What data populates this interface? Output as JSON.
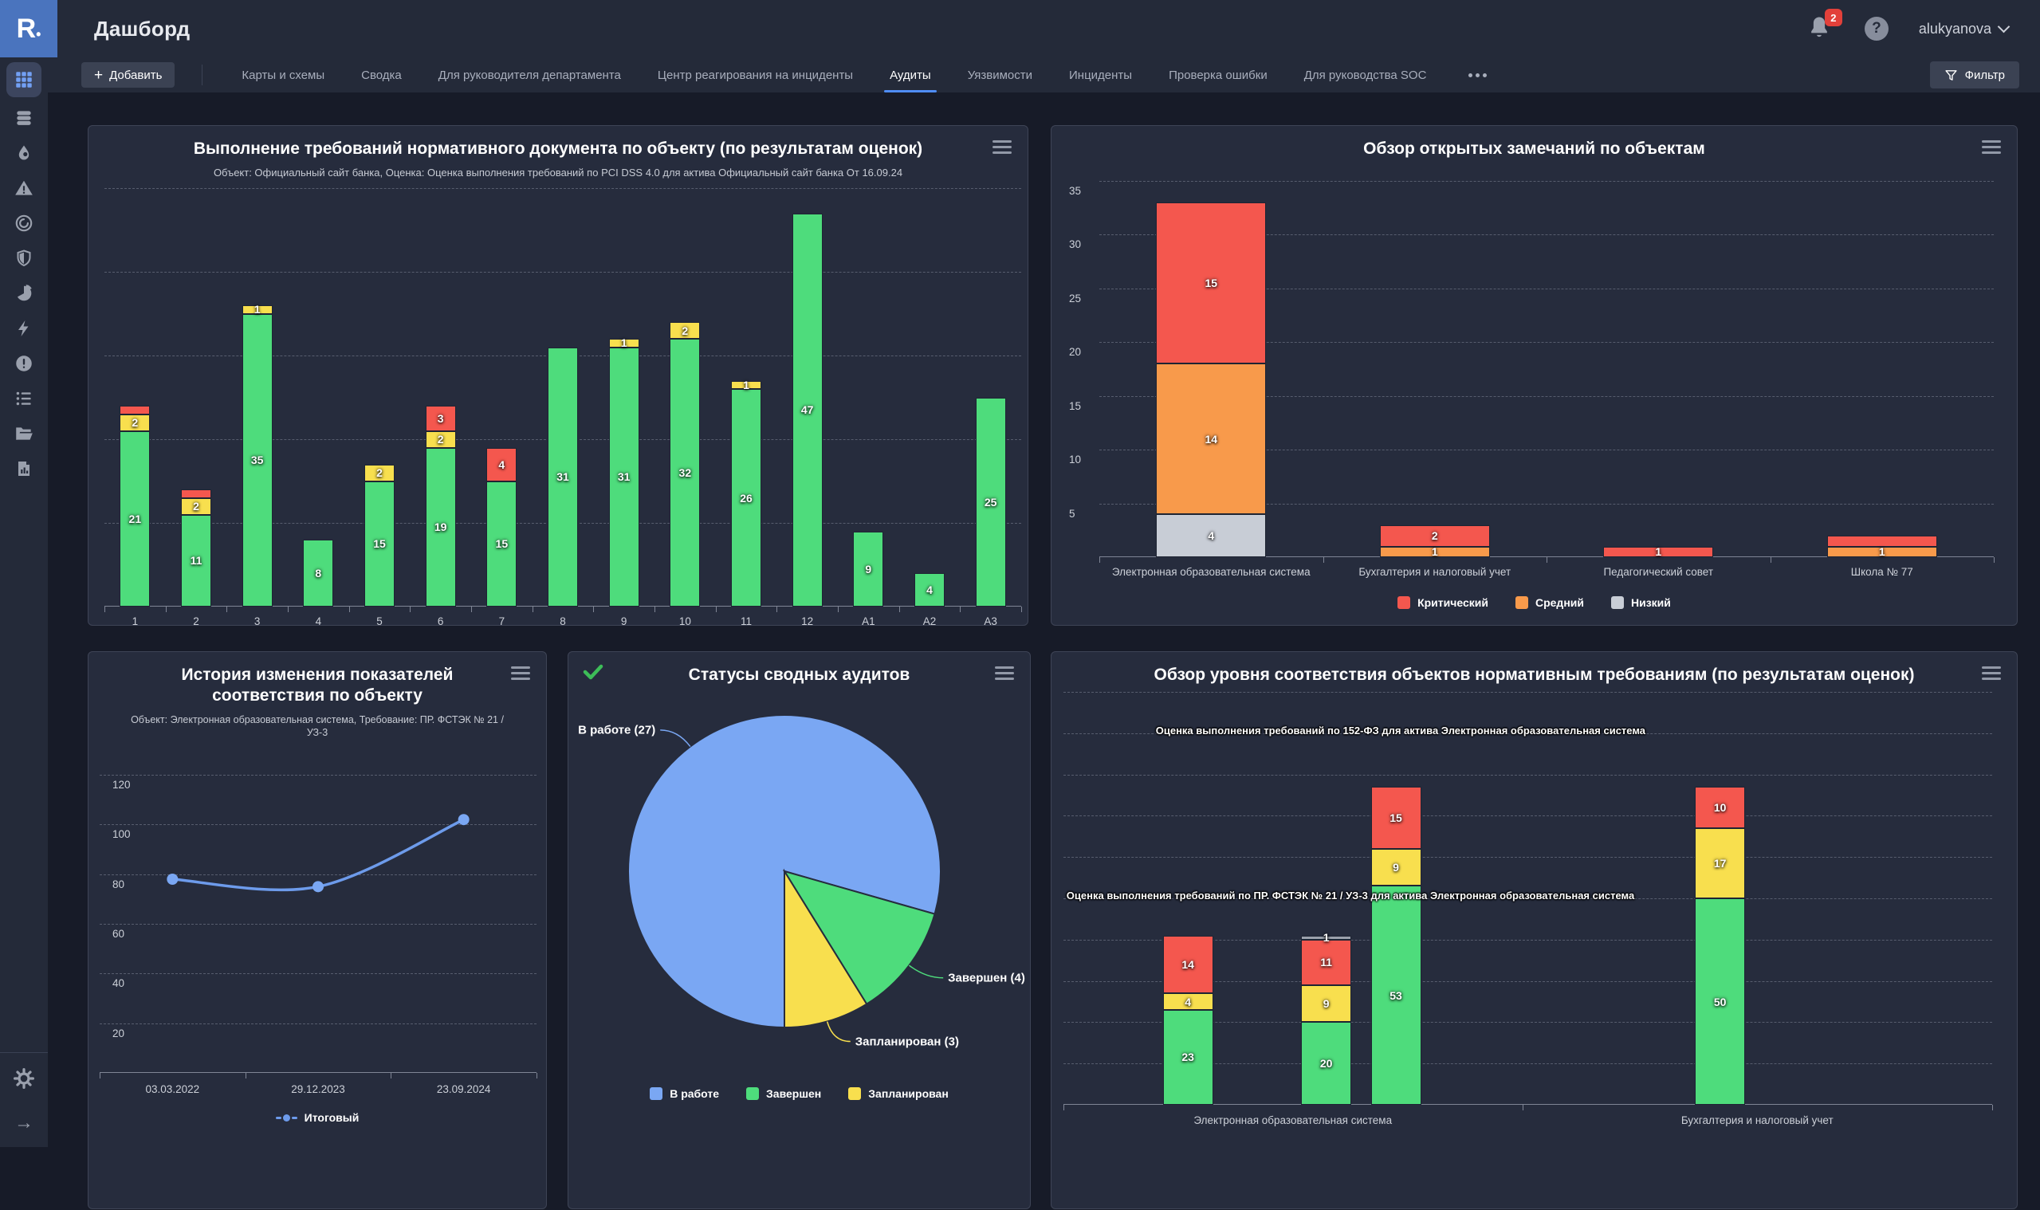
{
  "topbar": {
    "title": "Дашборд",
    "logo": "R",
    "notifications_badge": "2",
    "user": "alukyanova"
  },
  "sidebar": {
    "icons": [
      "dashboard-grid",
      "database",
      "droplet",
      "warning-triangle",
      "process-circle",
      "shield",
      "pie-chart",
      "lightning",
      "alert-circle",
      "task-list",
      "folder",
      "report-document",
      "settings-gear",
      "expand-arrow"
    ],
    "active": "dashboard-grid"
  },
  "tabbar": {
    "add_label": "Добавить",
    "tabs": [
      "Карты и схемы",
      "Сводка",
      "Для руководителя департамента",
      "Центр реагирования на инциденты",
      "Аудиты",
      "Уязвимости",
      "Инциденты",
      "Проверка ошибки",
      "Для руководства SOC"
    ],
    "active_tab": "Аудиты",
    "filter_label": "Фильтр"
  },
  "palette": {
    "green": "#4edc7c",
    "yellow": "#f8df4e",
    "red": "#f4574e",
    "orange": "#f89a4b",
    "gray": "#c8cdd6",
    "gray2": "#9aa0ab",
    "blue": "#7aa7f3",
    "line": "#6d9beb",
    "accent": "#4f8df6"
  },
  "chart_data": [
    {
      "id": "c1",
      "type": "bar",
      "stacked": true,
      "title": "Выполнение требований нормативного документа по объекту (по результатам оценок)",
      "subtitle": "Объект: Официальный сайт банка, Оценка: Оценка выполнения требований по PCI DSS 4.0 для актива Официальный сайт банка От 16.09.24",
      "categories": [
        "1",
        "2",
        "3",
        "4",
        "5",
        "6",
        "7",
        "8",
        "9",
        "10",
        "11",
        "12",
        "А1",
        "А2",
        "А3"
      ],
      "series": [
        {
          "name": "green",
          "color": "green",
          "values": [
            21,
            11,
            35,
            8,
            15,
            19,
            15,
            31,
            31,
            32,
            26,
            47,
            9,
            4,
            25
          ],
          "labels": [
            "21",
            "11",
            "35",
            "8",
            "15",
            "19",
            "15",
            "31",
            "31",
            "32",
            "26",
            "47",
            "9",
            "4",
            "25"
          ]
        },
        {
          "name": "yellow",
          "color": "yellow",
          "values": [
            2,
            2,
            1,
            0,
            2,
            2,
            0,
            0,
            1,
            2,
            1,
            0,
            0,
            0,
            0
          ],
          "labels": [
            "2",
            "2",
            "1",
            null,
            "2",
            "2",
            null,
            null,
            "1",
            "2",
            "1",
            null,
            null,
            null,
            null
          ]
        },
        {
          "name": "red",
          "color": "red",
          "values": [
            1,
            1,
            0,
            0,
            0,
            3,
            4,
            0,
            0,
            0,
            0,
            0,
            0,
            0,
            0
          ],
          "labels": [
            null,
            null,
            null,
            null,
            null,
            "3",
            "4",
            null,
            null,
            null,
            null,
            null,
            null,
            null,
            null
          ]
        }
      ],
      "ylim": [
        0,
        50
      ],
      "grid_step": 10,
      "y_labels": false,
      "grid": true,
      "legend_position": "none"
    },
    {
      "id": "c2",
      "type": "bar",
      "stacked": true,
      "title": "Обзор открытых замечаний по объектам",
      "categories": [
        "Электронная образовательная система",
        "Бухгалтерия и налоговый учет",
        "Педагогический совет",
        "Школа № 77"
      ],
      "series": [
        {
          "name": "Низкий",
          "color": "gray",
          "values": [
            4,
            0,
            0,
            0
          ],
          "labels": [
            "4",
            null,
            null,
            null
          ]
        },
        {
          "name": "Средний",
          "color": "orange",
          "values": [
            14,
            1,
            0,
            1
          ],
          "labels": [
            "14",
            "1",
            null,
            "1"
          ]
        },
        {
          "name": "Критический",
          "color": "red",
          "values": [
            15,
            2,
            1,
            1
          ],
          "labels": [
            "15",
            "2",
            "1",
            null
          ]
        }
      ],
      "legend": [
        {
          "label": "Критический",
          "color": "red"
        },
        {
          "label": "Средний",
          "color": "orange"
        },
        {
          "label": "Низкий",
          "color": "gray"
        }
      ],
      "ylim": [
        0,
        35
      ],
      "grid_step": 5,
      "y_labels": true,
      "grid": true,
      "legend_position": "bottom"
    },
    {
      "id": "c3",
      "type": "line",
      "title": "История изменения показателей соответствия по объекту",
      "subtitle": "Объект: Электронная образовательная система, Требование: ПР. ФСТЭК № 21 / УЗ-3",
      "x": [
        "03.03.2022",
        "29.12.2023",
        "23.09.2024"
      ],
      "series": [
        {
          "name": "Итоговый",
          "color": "line",
          "values": [
            78,
            75,
            102
          ]
        }
      ],
      "ylim": [
        0,
        130
      ],
      "grid_step": 20,
      "y_ticks": [
        20,
        40,
        60,
        80,
        100,
        120
      ],
      "y_labels": true,
      "grid": true,
      "legend_position": "bottom"
    },
    {
      "id": "c4",
      "type": "pie",
      "title": "Статусы сводных аудитов",
      "slices": [
        {
          "label": "В работе",
          "value": 27,
          "color": "blue",
          "callout": "В работе (27)"
        },
        {
          "label": "Завершен",
          "value": 4,
          "color": "green",
          "callout": "Завершен (4)"
        },
        {
          "label": "Запланирован",
          "value": 3,
          "color": "yellow",
          "callout": "Запланирован (3)"
        }
      ],
      "legend": [
        {
          "label": "В работе",
          "color": "blue"
        },
        {
          "label": "Завершен",
          "color": "green"
        },
        {
          "label": "Запланирован",
          "color": "yellow"
        }
      ],
      "legend_position": "bottom"
    },
    {
      "id": "c5",
      "type": "bar-grouped",
      "title": "Обзор уровня соответствия объектов нормативным требованиям (по результатам оценок)",
      "groups": [
        {
          "label": "Электронная образовательная система",
          "bars": [
            {
              "segments": [
                {
                  "value": 23,
                  "color": "green",
                  "label": "23"
                },
                {
                  "value": 4,
                  "color": "yellow",
                  "label": "4"
                },
                {
                  "value": 14,
                  "color": "red",
                  "label": "14"
                }
              ]
            },
            {
              "segments": [
                {
                  "value": 20,
                  "color": "green",
                  "label": "20"
                },
                {
                  "value": 9,
                  "color": "yellow",
                  "label": "9"
                },
                {
                  "value": 11,
                  "color": "red",
                  "label": "11"
                },
                {
                  "value": 1,
                  "color": "gray2",
                  "label": "1"
                }
              ]
            },
            {
              "segments": [
                {
                  "value": 53,
                  "color": "green",
                  "label": "53"
                },
                {
                  "value": 9,
                  "color": "yellow",
                  "label": "9"
                },
                {
                  "value": 15,
                  "color": "red",
                  "label": "15"
                }
              ]
            }
          ]
        },
        {
          "label": "Бухгалтерия и налоговый учет",
          "bars": [
            {
              "segments": [
                {
                  "value": 50,
                  "color": "green",
                  "label": "50"
                },
                {
                  "value": 17,
                  "color": "yellow",
                  "label": "17"
                },
                {
                  "value": 10,
                  "color": "red",
                  "label": "10"
                }
              ]
            }
          ]
        }
      ],
      "annotations": [
        "Оценка выполнения требований по 152-ФЗ для актива Электронная образовательная система",
        "Оценка выполнения требований по ПР. ФСТЭК № 21 / УЗ-3 для актива Электронная образовательная система"
      ],
      "ylim": [
        0,
        100
      ],
      "grid_step": 10,
      "y_labels": false,
      "grid": true,
      "legend_position": "none"
    }
  ]
}
